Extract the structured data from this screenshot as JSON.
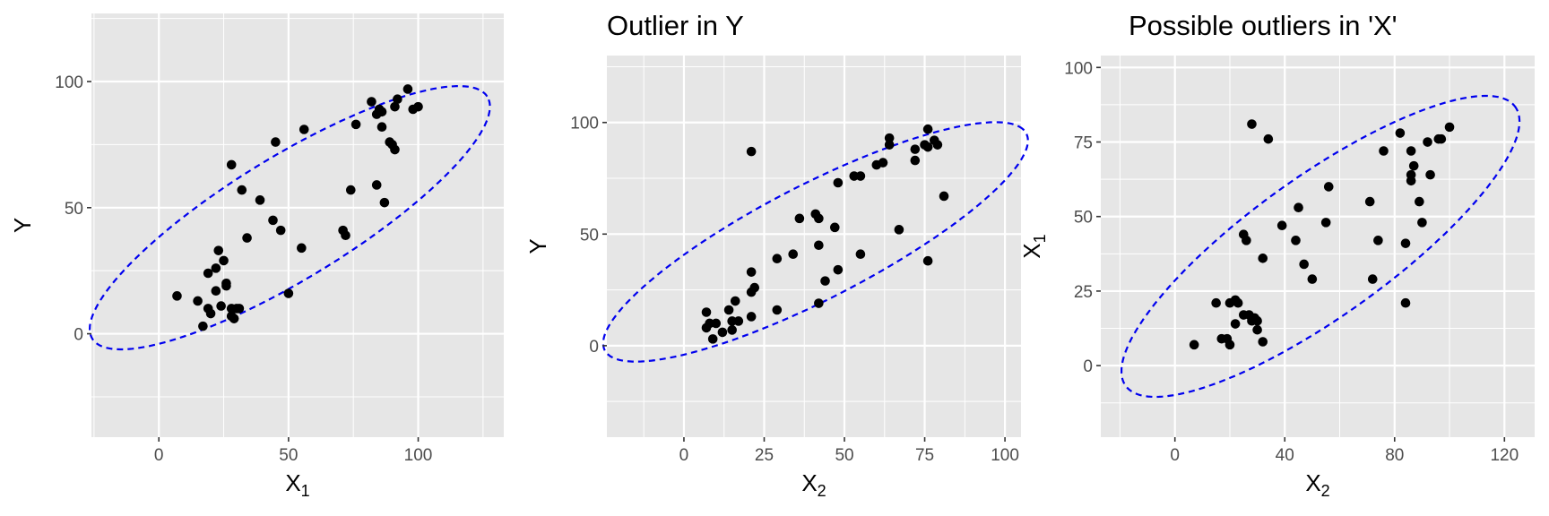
{
  "figure": {
    "point_color": "#000000",
    "ellipse_color": "#0000ee",
    "panel_background": "#e6e6e6",
    "gridline_color": "#ffffff"
  },
  "chart_data": [
    {
      "type": "scatter",
      "title": "",
      "xlabel": "X",
      "xlabel_sub": "1",
      "ylabel": "Y",
      "ylabel_sub": "",
      "xlim": [
        -26,
        133
      ],
      "ylim": [
        -41,
        127
      ],
      "xticks": [
        0,
        50,
        100
      ],
      "xtick_labels": [
        "0",
        "50",
        "100"
      ],
      "yticks": [
        0,
        50,
        100
      ],
      "ytick_labels": [
        "0",
        "50",
        "100"
      ],
      "grid": true,
      "ellipse": {
        "cx": 50.5,
        "cy": 46,
        "rx": 90,
        "ry": 24,
        "angle_deg": 32.3
      },
      "points": [
        [
          7,
          15
        ],
        [
          15,
          13
        ],
        [
          17,
          3
        ],
        [
          19,
          10
        ],
        [
          19,
          24
        ],
        [
          20,
          8
        ],
        [
          22,
          17
        ],
        [
          22,
          26
        ],
        [
          23,
          33
        ],
        [
          24,
          11
        ],
        [
          25,
          29
        ],
        [
          26,
          19
        ],
        [
          26,
          20
        ],
        [
          28,
          10
        ],
        [
          28,
          67
        ],
        [
          28,
          7
        ],
        [
          29,
          6
        ],
        [
          30,
          10
        ],
        [
          31,
          10
        ],
        [
          32,
          57
        ],
        [
          34,
          38
        ],
        [
          39,
          53
        ],
        [
          44,
          45
        ],
        [
          45,
          76
        ],
        [
          47,
          41
        ],
        [
          50,
          16
        ],
        [
          55,
          34
        ],
        [
          56,
          81
        ],
        [
          71,
          41
        ],
        [
          72,
          39
        ],
        [
          74,
          57
        ],
        [
          76,
          83
        ],
        [
          82,
          92
        ],
        [
          84,
          59
        ],
        [
          84,
          87
        ],
        [
          85,
          89
        ],
        [
          86,
          88
        ],
        [
          86,
          82
        ],
        [
          87,
          52
        ],
        [
          89,
          76
        ],
        [
          90,
          75
        ],
        [
          91,
          73
        ],
        [
          91,
          90
        ],
        [
          92,
          93
        ],
        [
          96,
          97
        ],
        [
          98,
          89
        ],
        [
          100,
          90
        ]
      ]
    },
    {
      "type": "scatter",
      "title": "Outlier in Y",
      "xlabel": "X",
      "xlabel_sub": "2",
      "ylabel": "Y",
      "ylabel_sub": "",
      "xlim": [
        -24,
        105
      ],
      "ylim": [
        -41,
        130
      ],
      "xticks": [
        0,
        25,
        50,
        75,
        100
      ],
      "xtick_labels": [
        "0",
        "25",
        "50",
        "75",
        "100"
      ],
      "yticks": [
        0,
        50,
        100
      ],
      "ytick_labels": [
        "0",
        "50",
        "100"
      ],
      "grid": true,
      "ellipse": {
        "cx": 41,
        "cy": 46.5,
        "rx": 82,
        "ry": 23,
        "angle_deg": 38
      },
      "points": [
        [
          7,
          15
        ],
        [
          7,
          8
        ],
        [
          8,
          10
        ],
        [
          9,
          3
        ],
        [
          10,
          10
        ],
        [
          12,
          6
        ],
        [
          14,
          16
        ],
        [
          15,
          7
        ],
        [
          15,
          11
        ],
        [
          16,
          20
        ],
        [
          17,
          11
        ],
        [
          21,
          13
        ],
        [
          21,
          24
        ],
        [
          21,
          33
        ],
        [
          21,
          87
        ],
        [
          22,
          26
        ],
        [
          29,
          16
        ],
        [
          29,
          39
        ],
        [
          34,
          41
        ],
        [
          36,
          57
        ],
        [
          41,
          59
        ],
        [
          42,
          19
        ],
        [
          42,
          45
        ],
        [
          42,
          57
        ],
        [
          44,
          29
        ],
        [
          47,
          53
        ],
        [
          48,
          34
        ],
        [
          48,
          73
        ],
        [
          53,
          76
        ],
        [
          55,
          41
        ],
        [
          55,
          76
        ],
        [
          60,
          81
        ],
        [
          62,
          82
        ],
        [
          64,
          90
        ],
        [
          64,
          93
        ],
        [
          67,
          52
        ],
        [
          72,
          83
        ],
        [
          72,
          88
        ],
        [
          75,
          90
        ],
        [
          76,
          38
        ],
        [
          76,
          89
        ],
        [
          76,
          97
        ],
        [
          78,
          92
        ],
        [
          79,
          90
        ],
        [
          81,
          67
        ]
      ]
    },
    {
      "type": "scatter",
      "title": "Possible outliers in 'X'",
      "xlabel": "X",
      "xlabel_sub": "2",
      "ylabel": "X",
      "ylabel_sub": "1",
      "xlim": [
        -27,
        131
      ],
      "ylim": [
        -24,
        104
      ],
      "xticks": [
        0,
        40,
        80,
        120
      ],
      "xtick_labels": [
        "0",
        "40",
        "80",
        "120"
      ],
      "yticks": [
        0,
        25,
        50,
        75,
        100
      ],
      "ytick_labels": [
        "0",
        "25",
        "50",
        "75",
        "100"
      ],
      "grid": true,
      "ellipse": {
        "cx": 53,
        "cy": 40,
        "rx": 85,
        "ry": 24,
        "angle_deg": 33
      },
      "points": [
        [
          7,
          7
        ],
        [
          15,
          21
        ],
        [
          17,
          9
        ],
        [
          19,
          9
        ],
        [
          20,
          21
        ],
        [
          20,
          7
        ],
        [
          22,
          14
        ],
        [
          22,
          22
        ],
        [
          23,
          21
        ],
        [
          25,
          17
        ],
        [
          25,
          44
        ],
        [
          26,
          42
        ],
        [
          27,
          17
        ],
        [
          28,
          81
        ],
        [
          28,
          15
        ],
        [
          29,
          16
        ],
        [
          30,
          15
        ],
        [
          30,
          12
        ],
        [
          32,
          36
        ],
        [
          32,
          8
        ],
        [
          34,
          76
        ],
        [
          39,
          47
        ],
        [
          44,
          42
        ],
        [
          45,
          53
        ],
        [
          47,
          34
        ],
        [
          50,
          29
        ],
        [
          55,
          48
        ],
        [
          56,
          60
        ],
        [
          71,
          55
        ],
        [
          72,
          29
        ],
        [
          74,
          42
        ],
        [
          76,
          72
        ],
        [
          82,
          78
        ],
        [
          84,
          41
        ],
        [
          84,
          21
        ],
        [
          86,
          72
        ],
        [
          86,
          62
        ],
        [
          86,
          64
        ],
        [
          87,
          67
        ],
        [
          89,
          55
        ],
        [
          90,
          48
        ],
        [
          92,
          75
        ],
        [
          93,
          64
        ],
        [
          96,
          76
        ],
        [
          97,
          76
        ],
        [
          100,
          80
        ]
      ]
    }
  ]
}
